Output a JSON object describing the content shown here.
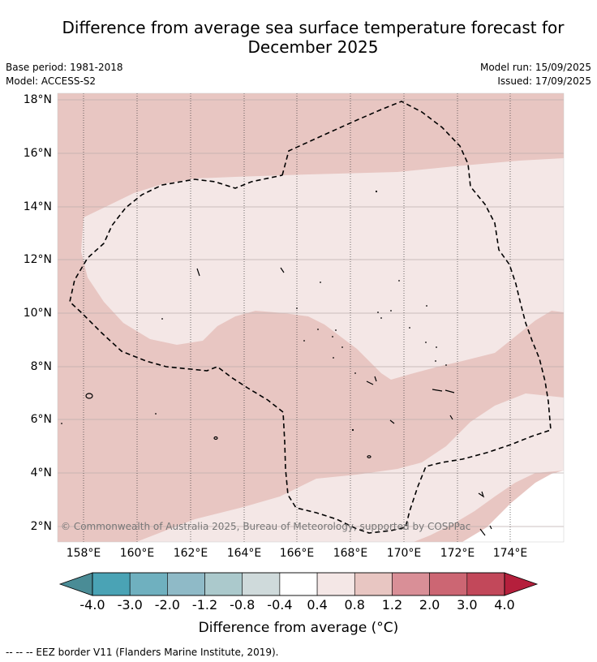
{
  "title_line1": "Difference from average sea surface temperature forecast for",
  "title_line2": "December 2025",
  "base_period": "Base period: 1981-2018",
  "model": "Model: ACCESS-S2",
  "model_run": "Model run: 15/09/2025",
  "issued": "Issued: 17/09/2025",
  "copyright": "© Commonwealth of Australia 2025, Bureau of Meteorology, supported by COSPPac",
  "lat_labels": [
    "18°N",
    "16°N",
    "14°N",
    "12°N",
    "10°N",
    "8°N",
    "6°N",
    "4°N",
    "2°N"
  ],
  "lon_labels": [
    "158°E",
    "160°E",
    "162°E",
    "164°E",
    "166°E",
    "168°E",
    "170°E",
    "172°E",
    "174°E"
  ],
  "colorbar": {
    "labels": [
      "-4.0",
      "-3.0",
      "-2.0",
      "-1.2",
      "-0.8",
      "-0.4",
      "0.4",
      "0.8",
      "1.2",
      "2.0",
      "3.0",
      "4.0"
    ],
    "colors": [
      "#4a8c96",
      "#4aa3b5",
      "#6fb0bf",
      "#8fbac7",
      "#abc9cc",
      "#cfdadb",
      "#ffffff",
      "#f4e7e6",
      "#e8c6c2",
      "#d98f97",
      "#cc6673",
      "#c2485a",
      "#b51f3c"
    ],
    "title": "Difference from average (°C)"
  },
  "footnote": "--  --  -- EEZ border V11 (Flanders Marine Institute, 2019).",
  "map_colors": {
    "anomaly_0_8_to_1_2": "#e8c6c2",
    "anomaly_0_4_to_0_8": "#f4e7e6",
    "anomaly_below_0_4": "#ffffff"
  }
}
